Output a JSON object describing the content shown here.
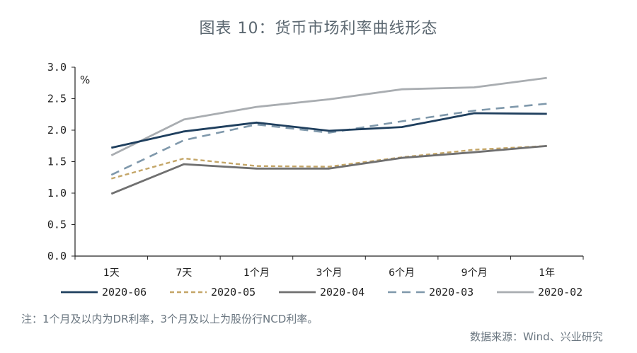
{
  "title": "图表 10：货币市场利率曲线形态",
  "note": "注：1个月及以内为DR利率，3个月及以上为股份行NCD利率。",
  "source": "数据来源：Wind、兴业研究",
  "chart_data": {
    "type": "line",
    "ylabel": "%",
    "ylim": [
      0,
      3.0
    ],
    "yticks": [
      "3.0",
      "2.5",
      "2.0",
      "1.5",
      "1.0",
      "0.5",
      "0.0"
    ],
    "categories": [
      "1天",
      "7天",
      "1个月",
      "3个月",
      "6个月",
      "9个月",
      "1年"
    ],
    "legend_position": "bottom",
    "series": [
      {
        "name": "2020-06",
        "color": "#1f3f5e",
        "dash": "",
        "width": 2.8,
        "values": [
          1.72,
          1.98,
          2.12,
          1.99,
          2.05,
          2.27,
          2.26
        ]
      },
      {
        "name": "2020-05",
        "color": "#c4a668",
        "dash": "6,4",
        "width": 2.4,
        "values": [
          1.23,
          1.55,
          1.43,
          1.42,
          1.57,
          1.69,
          1.75
        ]
      },
      {
        "name": "2020-04",
        "color": "#707070",
        "dash": "",
        "width": 2.8,
        "values": [
          0.99,
          1.46,
          1.39,
          1.39,
          1.56,
          1.65,
          1.75
        ]
      },
      {
        "name": "2020-03",
        "color": "#7f98ab",
        "dash": "12,8",
        "width": 2.6,
        "values": [
          1.29,
          1.84,
          2.09,
          1.96,
          2.14,
          2.31,
          2.42
        ]
      },
      {
        "name": "2020-02",
        "color": "#a9adb1",
        "dash": "",
        "width": 2.8,
        "values": [
          1.6,
          2.17,
          2.37,
          2.49,
          2.65,
          2.68,
          2.83
        ]
      }
    ]
  }
}
